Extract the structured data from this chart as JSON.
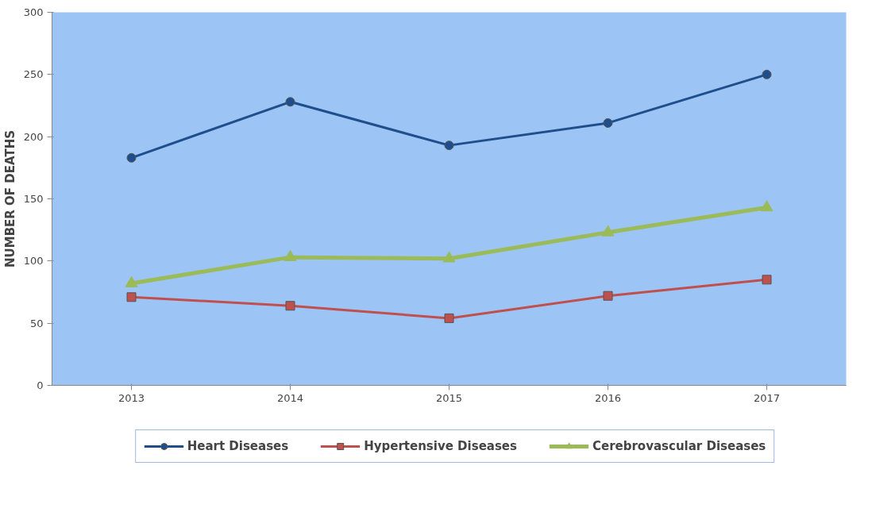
{
  "chart_data": {
    "type": "line",
    "ylabel": "NUMBER OF DEATHS",
    "categories": [
      "2013",
      "2014",
      "2015",
      "2016",
      "2017"
    ],
    "ylim": [
      0,
      300
    ],
    "yticks": [
      0,
      50,
      100,
      150,
      200,
      250,
      300
    ],
    "grid": false,
    "legend": "bottom",
    "series": [
      {
        "name": "Heart Diseases",
        "color": "#1f4e8c",
        "marker": "circle",
        "values": [
          183,
          228,
          193,
          211,
          250
        ]
      },
      {
        "name": "Hypertensive Diseases",
        "color": "#c0504d",
        "marker": "square",
        "values": [
          71,
          64,
          54,
          72,
          85
        ]
      },
      {
        "name": "Cerebrovascular Diseases",
        "color": "#9bbb59",
        "marker": "triangle",
        "values": [
          82,
          103,
          102,
          123,
          143
        ]
      }
    ]
  }
}
